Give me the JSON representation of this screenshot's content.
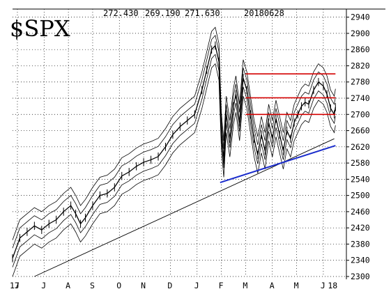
{
  "chart_data": {
    "type": "line",
    "title": "$SPX",
    "header_values": [
      "272.430",
      "269.190",
      "271.630",
      "20180628"
    ],
    "ylim": [
      2300,
      2960
    ],
    "y_ticks": [
      2300,
      2340,
      2380,
      2420,
      2460,
      2500,
      2540,
      2580,
      2620,
      2660,
      2700,
      2740,
      2780,
      2820,
      2860,
      2900,
      2940
    ],
    "x_ticks": [
      {
        "label": "17",
        "month": 0
      },
      {
        "label": "J",
        "month": 0.2
      },
      {
        "label": "J",
        "month": 1.3
      },
      {
        "label": "A",
        "month": 2.3
      },
      {
        "label": "S",
        "month": 3.3
      },
      {
        "label": "O",
        "month": 4.4
      },
      {
        "label": "N",
        "month": 5.4
      },
      {
        "label": "D",
        "month": 6.5
      },
      {
        "label": "J",
        "month": 7.6
      },
      {
        "label": "F",
        "month": 8.6
      },
      {
        "label": "M",
        "month": 9.6
      },
      {
        "label": "A",
        "month": 10.7
      },
      {
        "label": "M",
        "month": 11.7
      },
      {
        "label": "J",
        "month": 12.8
      },
      {
        "label": "18",
        "month": 13.1
      }
    ],
    "xlim": [
      0,
      13.75
    ],
    "grid": true,
    "price": [
      [
        0,
        2345
      ],
      [
        0.3,
        2395
      ],
      [
        0.6,
        2410
      ],
      [
        0.9,
        2425
      ],
      [
        1.2,
        2415
      ],
      [
        1.5,
        2430
      ],
      [
        1.8,
        2440
      ],
      [
        2.1,
        2460
      ],
      [
        2.4,
        2475
      ],
      [
        2.6,
        2455
      ],
      [
        2.8,
        2430
      ],
      [
        3.0,
        2445
      ],
      [
        3.3,
        2475
      ],
      [
        3.6,
        2500
      ],
      [
        3.9,
        2505
      ],
      [
        4.2,
        2520
      ],
      [
        4.5,
        2548
      ],
      [
        4.8,
        2558
      ],
      [
        5.1,
        2572
      ],
      [
        5.4,
        2582
      ],
      [
        5.7,
        2588
      ],
      [
        6.0,
        2596
      ],
      [
        6.3,
        2620
      ],
      [
        6.6,
        2650
      ],
      [
        6.9,
        2670
      ],
      [
        7.2,
        2685
      ],
      [
        7.5,
        2700
      ],
      [
        7.8,
        2760
      ],
      [
        8.0,
        2810
      ],
      [
        8.2,
        2860
      ],
      [
        8.35,
        2870
      ],
      [
        8.5,
        2830
      ],
      [
        8.6,
        2660
      ],
      [
        8.7,
        2590
      ],
      [
        8.8,
        2700
      ],
      [
        8.95,
        2640
      ],
      [
        9.1,
        2720
      ],
      [
        9.2,
        2750
      ],
      [
        9.35,
        2680
      ],
      [
        9.5,
        2790
      ],
      [
        9.65,
        2760
      ],
      [
        9.8,
        2700
      ],
      [
        9.95,
        2640
      ],
      [
        10.1,
        2600
      ],
      [
        10.25,
        2650
      ],
      [
        10.4,
        2610
      ],
      [
        10.55,
        2680
      ],
      [
        10.7,
        2640
      ],
      [
        10.85,
        2690
      ],
      [
        11.0,
        2650
      ],
      [
        11.15,
        2610
      ],
      [
        11.3,
        2660
      ],
      [
        11.45,
        2640
      ],
      [
        11.6,
        2680
      ],
      [
        11.75,
        2700
      ],
      [
        11.9,
        2720
      ],
      [
        12.05,
        2730
      ],
      [
        12.2,
        2725
      ],
      [
        12.4,
        2760
      ],
      [
        12.6,
        2780
      ],
      [
        12.8,
        2770
      ],
      [
        12.95,
        2750
      ],
      [
        13.1,
        2715
      ],
      [
        13.25,
        2700
      ],
      [
        13.3,
        2718
      ]
    ],
    "moving_average": [
      [
        0.9,
        2300
      ],
      [
        13.25,
        2640
      ]
    ],
    "horizontal_lines": [
      {
        "y": 2800,
        "x_start": 9.6,
        "x_end": 13.3
      },
      {
        "y": 2741,
        "x_start": 9.6,
        "x_end": 13.3
      },
      {
        "y": 2700,
        "x_start": 9.6,
        "x_end": 13.3
      }
    ],
    "trendline": {
      "x_start": 8.55,
      "y_start": 2532,
      "x_end": 13.3,
      "y_end": 2623
    }
  }
}
